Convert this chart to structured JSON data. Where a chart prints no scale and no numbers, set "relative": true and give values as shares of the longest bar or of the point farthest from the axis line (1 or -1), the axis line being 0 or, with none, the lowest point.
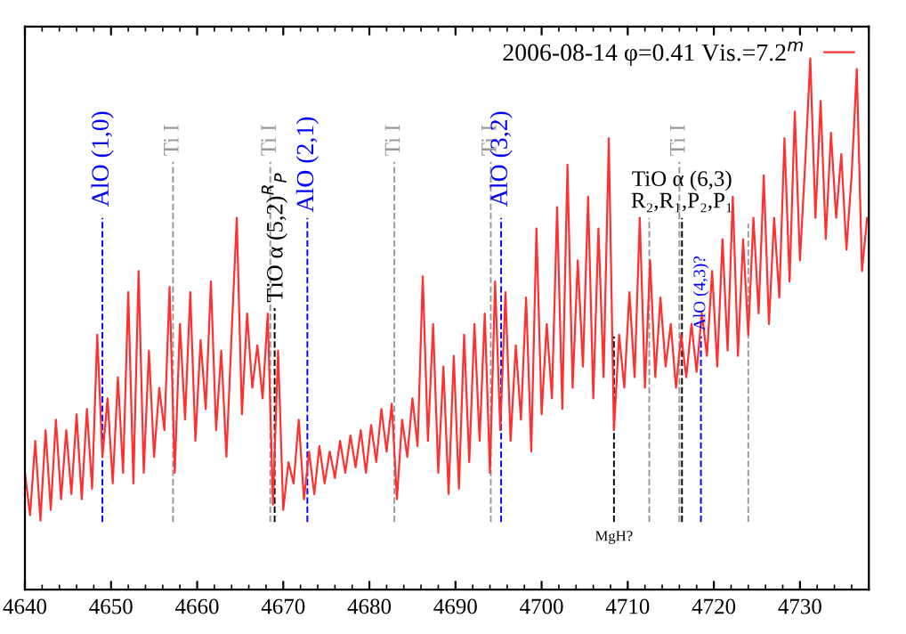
{
  "chart_data": {
    "type": "line",
    "relative": true,
    "tick_labels": "x",
    "legend": "top right",
    "grid": false,
    "marker": "none",
    "line_style": "solid",
    "xlim": [
      4640,
      4738
    ],
    "xticks": [
      4640,
      4650,
      4660,
      4670,
      4680,
      4690,
      4700,
      4710,
      4720,
      4730
    ],
    "series": [
      {
        "name": "2006-08-14 φ=0.41 Vis.=7.2$^{m}$",
        "color": "#ff3030",
        "x": [
          4640.0,
          4640.6,
          4641.2,
          4641.8,
          4642.4,
          4643.0,
          4643.6,
          4644.2,
          4644.8,
          4645.4,
          4646.0,
          4646.6,
          4647.2,
          4647.8,
          4648.4,
          4649.0,
          4649.6,
          4650.2,
          4650.8,
          4651.4,
          4652.0,
          4652.6,
          4653.2,
          4653.8,
          4654.4,
          4655.0,
          4655.6,
          4656.2,
          4656.8,
          4657.4,
          4658.0,
          4658.6,
          4659.2,
          4659.8,
          4660.4,
          4661.0,
          4661.6,
          4662.2,
          4662.8,
          4663.4,
          4664.0,
          4664.6,
          4665.2,
          4665.8,
          4666.4,
          4667.0,
          4667.6,
          4668.2,
          4668.8,
          4669.4,
          4670.0,
          4670.6,
          4671.2,
          4671.8,
          4672.4,
          4673.0,
          4673.6,
          4674.2,
          4674.8,
          4675.4,
          4676.0,
          4676.6,
          4677.2,
          4677.8,
          4678.4,
          4679.0,
          4679.6,
          4680.2,
          4680.8,
          4681.4,
          4682.0,
          4682.6,
          4683.2,
          4683.8,
          4684.4,
          4685.0,
          4685.6,
          4686.2,
          4686.8,
          4687.4,
          4688.0,
          4688.6,
          4689.2,
          4689.8,
          4690.4,
          4691.0,
          4691.6,
          4692.2,
          4692.8,
          4693.4,
          4694.0,
          4694.6,
          4695.2,
          4695.8,
          4696.4,
          4697.0,
          4697.6,
          4698.2,
          4698.8,
          4699.4,
          4700.0,
          4700.6,
          4701.2,
          4701.8,
          4702.4,
          4703.0,
          4703.6,
          4704.2,
          4704.8,
          4705.4,
          4706.0,
          4706.6,
          4707.2,
          4707.8,
          4708.4,
          4709.0,
          4709.6,
          4710.2,
          4710.8,
          4711.4,
          4712.0,
          4712.6,
          4713.2,
          4713.8,
          4714.4,
          4715.0,
          4715.6,
          4716.2,
          4716.8,
          4717.4,
          4718.0,
          4718.6,
          4719.2,
          4719.8,
          4720.4,
          4721.0,
          4721.6,
          4722.2,
          4722.8,
          4723.4,
          4724.0,
          4724.6,
          4725.2,
          4725.8,
          4726.4,
          4727.0,
          4727.6,
          4728.2,
          4728.8,
          4729.4,
          4730.0,
          4730.6,
          4731.2,
          4731.8,
          4732.4,
          4733.0,
          4733.6,
          4734.2,
          4734.8,
          4735.4,
          4736.0,
          4736.6,
          4737.2,
          4737.8
        ],
        "values": [
          0.22,
          0.14,
          0.28,
          0.13,
          0.3,
          0.15,
          0.32,
          0.17,
          0.3,
          0.18,
          0.33,
          0.17,
          0.34,
          0.19,
          0.48,
          0.25,
          0.36,
          0.2,
          0.4,
          0.22,
          0.56,
          0.2,
          0.6,
          0.22,
          0.45,
          0.25,
          0.38,
          0.3,
          0.57,
          0.22,
          0.5,
          0.32,
          0.56,
          0.28,
          0.47,
          0.34,
          0.58,
          0.3,
          0.45,
          0.25,
          0.48,
          0.7,
          0.33,
          0.52,
          0.38,
          0.46,
          0.36,
          0.52,
          0.16,
          0.45,
          0.15,
          0.24,
          0.2,
          0.32,
          0.17,
          0.26,
          0.18,
          0.27,
          0.2,
          0.26,
          0.21,
          0.28,
          0.22,
          0.29,
          0.23,
          0.3,
          0.22,
          0.31,
          0.24,
          0.34,
          0.26,
          0.35,
          0.17,
          0.32,
          0.25,
          0.36,
          0.27,
          0.59,
          0.28,
          0.5,
          0.22,
          0.42,
          0.18,
          0.44,
          0.19,
          0.48,
          0.24,
          0.5,
          0.28,
          0.52,
          0.22,
          0.58,
          0.3,
          0.56,
          0.28,
          0.46,
          0.32,
          0.55,
          0.26,
          0.68,
          0.33,
          0.5,
          0.36,
          0.72,
          0.34,
          0.8,
          0.38,
          0.62,
          0.42,
          0.74,
          0.36,
          0.68,
          0.4,
          0.85,
          0.3,
          0.48,
          0.38,
          0.56,
          0.4,
          0.7,
          0.38,
          0.62,
          0.4,
          0.55,
          0.42,
          0.5,
          0.38,
          0.48,
          0.4,
          0.5,
          0.41,
          0.52,
          0.44,
          0.6,
          0.42,
          0.66,
          0.45,
          0.74,
          0.44,
          0.66,
          0.48,
          0.7,
          0.52,
          0.78,
          0.5,
          0.7,
          0.55,
          0.85,
          0.58,
          0.9,
          0.62,
          0.8,
          1.0,
          0.7,
          0.92,
          0.66,
          0.86,
          0.7,
          0.82,
          0.64,
          0.78,
          0.98,
          0.6,
          0.7
        ]
      }
    ],
    "ref_lines": [
      {
        "axis": "x",
        "value": 4649.0,
        "label": "AlO (1,0)",
        "color": "#0000ff",
        "line_style": "dashed"
      },
      {
        "axis": "x",
        "value": 4657.2,
        "label": "Ti I",
        "color": "#999999",
        "line_style": "dashed"
      },
      {
        "axis": "x",
        "value": 4668.5,
        "label": "Ti I",
        "color": "#999999",
        "line_style": "dashed"
      },
      {
        "axis": "x",
        "value": 4669.0,
        "label": "TiO α (5,2)$^{R}$$_{P}$",
        "color": "#000000",
        "line_style": "dashed"
      },
      {
        "axis": "x",
        "value": 4672.8,
        "label": "AlO (2,1)",
        "color": "#0000ff",
        "line_style": "dashed"
      },
      {
        "axis": "x",
        "value": 4682.9,
        "label": "Ti I",
        "color": "#999999",
        "line_style": "dashed"
      },
      {
        "axis": "x",
        "value": 4694.1,
        "label": "Ti I",
        "color": "#999999",
        "line_style": "dashed"
      },
      {
        "axis": "x",
        "value": 4695.3,
        "label": "AlO (3,2)",
        "color": "#0000ff",
        "line_style": "dashed"
      },
      {
        "axis": "x",
        "value": 4708.4,
        "label": "MgH?",
        "color": "#000000",
        "line_style": "dashed"
      },
      {
        "axis": "x",
        "value": 4712.5,
        "label": null,
        "color": "#999999",
        "line_style": "dashed"
      },
      {
        "axis": "x",
        "value": 4716.0,
        "label": "Ti I",
        "color": "#999999",
        "line_style": "dashed"
      },
      {
        "axis": "x",
        "value": 4716.3,
        "label": "TiO α (6,3)\nR₂,R₁,P₂,P₁",
        "color": "#000000",
        "line_style": "dashed"
      },
      {
        "axis": "x",
        "value": 4718.5,
        "label": "AlO (4,3)?",
        "color": "#0000ff",
        "line_style": "dashed"
      },
      {
        "axis": "x",
        "value": 4724.0,
        "label": null,
        "color": "#999999",
        "line_style": "dashed"
      }
    ]
  }
}
